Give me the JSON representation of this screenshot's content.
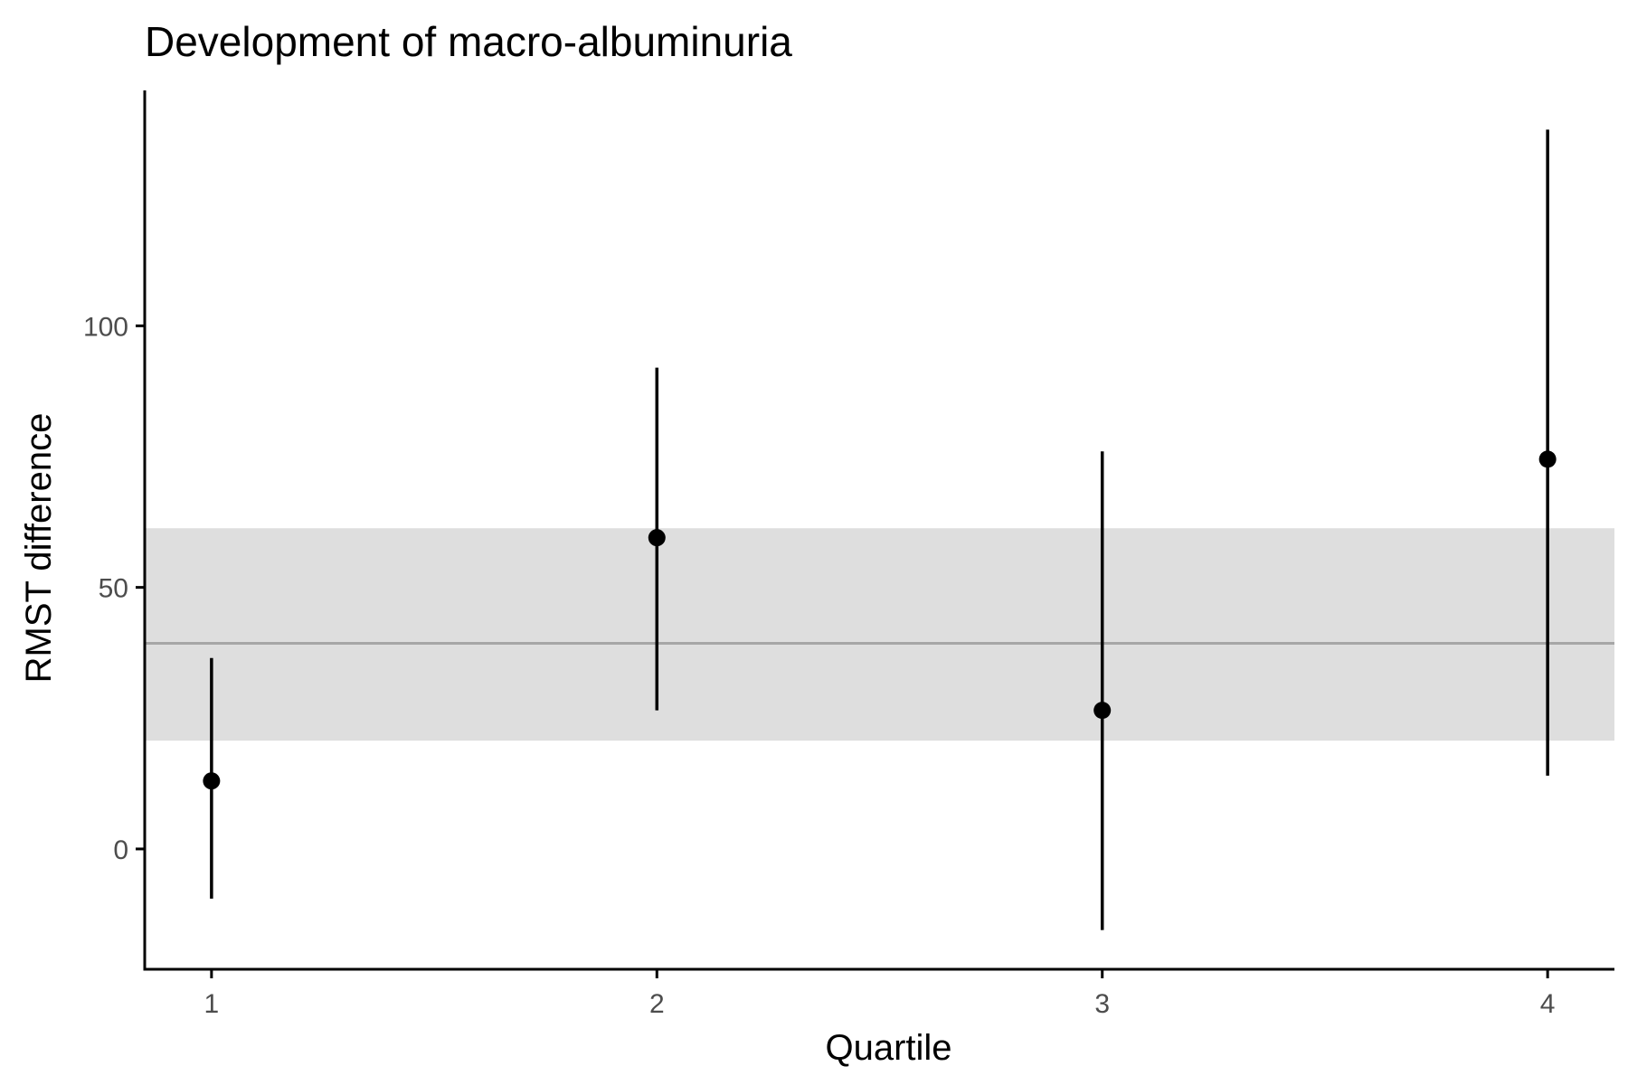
{
  "chart_data": {
    "type": "scatter",
    "title": "Development of macro-albuminuria",
    "xlabel": "Quartile",
    "ylabel": "RMST difference",
    "xlim": [
      0.85,
      4.15
    ],
    "ylim": [
      -23,
      145
    ],
    "x_ticks": [
      1,
      2,
      3,
      4
    ],
    "x_tick_labels": [
      "1",
      "2",
      "3",
      "4"
    ],
    "y_ticks": [
      0,
      50,
      100
    ],
    "y_tick_labels": [
      "0",
      "50",
      "100"
    ],
    "grid": false,
    "legend": "none",
    "points": [
      {
        "x": 1,
        "y": 13,
        "lower": -9.5,
        "upper": 36.5
      },
      {
        "x": 2,
        "y": 59.5,
        "lower": 26.5,
        "upper": 92
      },
      {
        "x": 3,
        "y": 26.5,
        "lower": -15.5,
        "upper": 76
      },
      {
        "x": 4,
        "y": 74.5,
        "lower": 14,
        "upper": 137.5
      }
    ],
    "overall": {
      "estimate": 39.3,
      "lower": 20.7,
      "upper": 61.3
    },
    "colors": {
      "points": "#000000",
      "band": "#dedede",
      "reference_line": "#a6a6a6",
      "axis": "#000000"
    }
  }
}
